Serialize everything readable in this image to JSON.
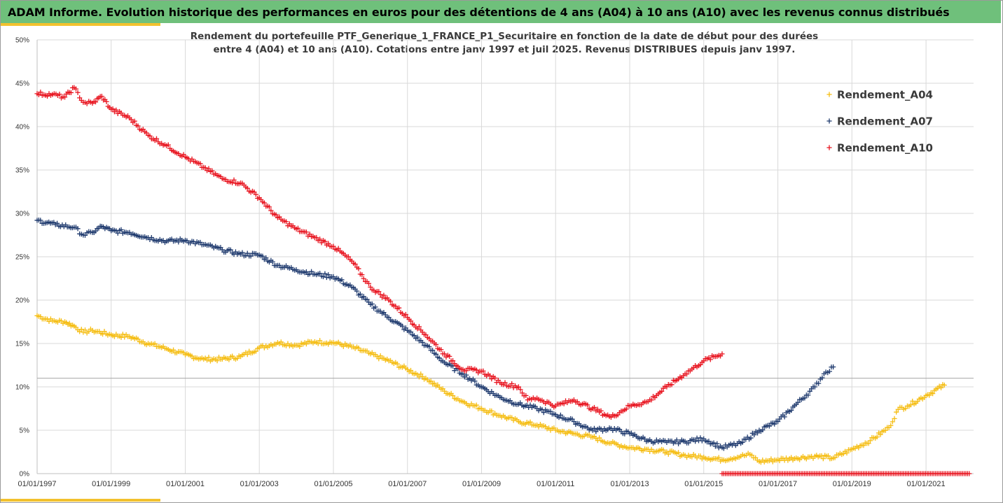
{
  "header": {
    "title": "ADAM Informe. Evolution historique des performances en euros pour des détentions de 4 ans (A04) à 10 ans (A10) avec les revenus connus distribués"
  },
  "colors": {
    "header_bg": "#6fc07b",
    "accent": "#f2c12e",
    "A04": "#f5bd12",
    "A07": "#1f3a6e",
    "A10": "#e8131e",
    "grid": "#d9d9d9",
    "hline": "#a6a6a6"
  },
  "chart_data": {
    "type": "scatter",
    "title_line1": "Rendement du portefeuille PTF_Generique_1_FRANCE_P1_Securitaire  en fonction de la date de début pour des durées",
    "title_line2": "entre 4 (A04) et 10 ans (A10). Cotations entre janv 1997 et juil 2025. Revenus DISTRIBUES depuis janv 1997.",
    "xlabel": "",
    "ylabel": "",
    "x_type": "date",
    "xlim": [
      "1997-01-01",
      "2022-04-15"
    ],
    "ylim": [
      0,
      50
    ],
    "y_unit": "%",
    "y_ticks": [
      "0%",
      "5%",
      "10%",
      "15%",
      "20%",
      "25%",
      "30%",
      "35%",
      "40%",
      "45%",
      "50%"
    ],
    "x_ticks": [
      "01/01/1997",
      "01/01/1999",
      "01/01/2001",
      "01/01/2003",
      "01/01/2005",
      "01/01/2007",
      "01/01/2009",
      "01/01/2011",
      "01/01/2013",
      "01/01/2015",
      "01/01/2017",
      "01/01/2019",
      "01/01/2021"
    ],
    "grid": true,
    "reference_line_y": 11,
    "legend_position": "top-right",
    "marker": "+",
    "series": [
      {
        "name": "Rendement_A04",
        "color": "#f5bd12",
        "points": [
          [
            "1997-01-01",
            18.2
          ],
          [
            "1997-06-01",
            17.6
          ],
          [
            "1997-10-01",
            17.5
          ],
          [
            "1998-01-01",
            17.0
          ],
          [
            "1998-04-01",
            16.3
          ],
          [
            "1998-07-01",
            16.5
          ],
          [
            "1999-01-01",
            16.0
          ],
          [
            "1999-07-01",
            15.8
          ],
          [
            "2000-01-01",
            15.0
          ],
          [
            "2000-07-01",
            14.4
          ],
          [
            "2001-01-01",
            13.7
          ],
          [
            "2001-07-01",
            13.2
          ],
          [
            "2002-01-01",
            13.2
          ],
          [
            "2002-07-01",
            13.5
          ],
          [
            "2003-01-01",
            14.5
          ],
          [
            "2003-07-01",
            15.1
          ],
          [
            "2004-01-01",
            14.8
          ],
          [
            "2004-07-01",
            15.2
          ],
          [
            "2005-01-01",
            15.1
          ],
          [
            "2005-07-01",
            14.6
          ],
          [
            "2006-01-01",
            13.8
          ],
          [
            "2006-07-01",
            13.0
          ],
          [
            "2007-01-01",
            12.0
          ],
          [
            "2007-07-01",
            11.0
          ],
          [
            "2008-01-01",
            9.5
          ],
          [
            "2008-07-01",
            8.3
          ],
          [
            "2009-01-01",
            7.5
          ],
          [
            "2009-07-01",
            6.7
          ],
          [
            "2010-01-01",
            6.0
          ],
          [
            "2010-07-01",
            5.6
          ],
          [
            "2011-01-01",
            5.0
          ],
          [
            "2011-07-01",
            4.6
          ],
          [
            "2012-01-01",
            4.2
          ],
          [
            "2012-07-01",
            3.5
          ],
          [
            "2013-01-01",
            3.0
          ],
          [
            "2013-07-01",
            2.8
          ],
          [
            "2014-01-01",
            2.5
          ],
          [
            "2014-07-01",
            2.1
          ],
          [
            "2015-01-01",
            1.9
          ],
          [
            "2015-07-01",
            1.6
          ],
          [
            "2016-01-01",
            2.0
          ],
          [
            "2016-04-01",
            2.2
          ],
          [
            "2016-07-01",
            1.4
          ],
          [
            "2017-01-01",
            1.6
          ],
          [
            "2017-07-01",
            1.8
          ],
          [
            "2018-01-01",
            2.0
          ],
          [
            "2018-07-01",
            1.8
          ],
          [
            "2019-01-01",
            2.8
          ],
          [
            "2019-07-01",
            3.8
          ],
          [
            "2020-01-01",
            5.3
          ],
          [
            "2020-04-01",
            7.4
          ],
          [
            "2020-07-01",
            7.8
          ],
          [
            "2021-01-01",
            9.0
          ],
          [
            "2021-07-01",
            10.2
          ]
        ]
      },
      {
        "name": "Rendement_A07",
        "color": "#1f3a6e",
        "points": [
          [
            "1997-01-01",
            29.2
          ],
          [
            "1997-07-01",
            28.7
          ],
          [
            "1998-01-01",
            28.4
          ],
          [
            "1998-04-01",
            27.5
          ],
          [
            "1998-07-01",
            27.8
          ],
          [
            "1998-10-01",
            28.5
          ],
          [
            "1999-01-01",
            28.0
          ],
          [
            "1999-07-01",
            27.8
          ],
          [
            "2000-01-01",
            27.2
          ],
          [
            "2000-07-01",
            26.8
          ],
          [
            "2001-01-01",
            26.9
          ],
          [
            "2001-07-01",
            26.4
          ],
          [
            "2002-01-01",
            25.8
          ],
          [
            "2002-07-01",
            25.3
          ],
          [
            "2003-01-01",
            25.2
          ],
          [
            "2003-07-01",
            24.0
          ],
          [
            "2004-01-01",
            23.5
          ],
          [
            "2004-07-01",
            23.0
          ],
          [
            "2005-01-01",
            22.7
          ],
          [
            "2005-07-01",
            21.5
          ],
          [
            "2006-01-01",
            19.5
          ],
          [
            "2006-07-01",
            18.0
          ],
          [
            "2007-01-01",
            16.5
          ],
          [
            "2007-07-01",
            14.8
          ],
          [
            "2008-01-01",
            12.8
          ],
          [
            "2008-07-01",
            11.5
          ],
          [
            "2009-01-01",
            10.0
          ],
          [
            "2009-07-01",
            8.8
          ],
          [
            "2010-01-01",
            8.0
          ],
          [
            "2010-07-01",
            7.5
          ],
          [
            "2011-01-01",
            6.8
          ],
          [
            "2011-07-01",
            6.0
          ],
          [
            "2012-01-01",
            5.0
          ],
          [
            "2012-07-01",
            5.2
          ],
          [
            "2013-01-01",
            4.6
          ],
          [
            "2013-07-01",
            3.8
          ],
          [
            "2014-01-01",
            3.6
          ],
          [
            "2014-07-01",
            3.7
          ],
          [
            "2015-01-01",
            4.0
          ],
          [
            "2015-07-01",
            3.0
          ],
          [
            "2016-01-01",
            3.5
          ],
          [
            "2016-07-01",
            5.0
          ],
          [
            "2017-01-01",
            6.0
          ],
          [
            "2017-07-01",
            8.0
          ],
          [
            "2018-01-01",
            10.0
          ],
          [
            "2018-04-01",
            11.5
          ],
          [
            "2018-07-01",
            12.3
          ]
        ]
      },
      {
        "name": "Rendement_A10",
        "color": "#e8131e",
        "points": [
          [
            "1997-01-01",
            43.8
          ],
          [
            "1997-06-01",
            43.7
          ],
          [
            "1997-10-01",
            43.4
          ],
          [
            "1998-01-01",
            44.5
          ],
          [
            "1998-04-01",
            42.8
          ],
          [
            "1998-07-01",
            42.7
          ],
          [
            "1998-10-01",
            43.5
          ],
          [
            "1999-01-01",
            42.0
          ],
          [
            "1999-07-01",
            41.0
          ],
          [
            "2000-01-01",
            39.0
          ],
          [
            "2000-07-01",
            37.8
          ],
          [
            "2001-01-01",
            36.5
          ],
          [
            "2001-07-01",
            35.3
          ],
          [
            "2002-01-01",
            34.0
          ],
          [
            "2002-07-01",
            33.5
          ],
          [
            "2003-01-01",
            31.8
          ],
          [
            "2003-07-01",
            29.5
          ],
          [
            "2004-01-01",
            28.2
          ],
          [
            "2004-07-01",
            27.2
          ],
          [
            "2005-01-01",
            26.2
          ],
          [
            "2005-07-01",
            24.5
          ],
          [
            "2006-01-01",
            21.5
          ],
          [
            "2006-07-01",
            20.0
          ],
          [
            "2007-01-01",
            18.0
          ],
          [
            "2007-07-01",
            16.0
          ],
          [
            "2008-01-01",
            13.8
          ],
          [
            "2008-07-01",
            12.0
          ],
          [
            "2009-01-01",
            11.8
          ],
          [
            "2009-07-01",
            10.5
          ],
          [
            "2010-01-01",
            10.0
          ],
          [
            "2010-04-01",
            8.5
          ],
          [
            "2010-07-01",
            8.7
          ],
          [
            "2011-01-01",
            7.8
          ],
          [
            "2011-07-01",
            8.5
          ],
          [
            "2012-01-01",
            7.5
          ],
          [
            "2012-07-01",
            6.5
          ],
          [
            "2013-01-01",
            7.8
          ],
          [
            "2013-07-01",
            8.3
          ],
          [
            "2014-01-01",
            10.0
          ],
          [
            "2014-07-01",
            11.5
          ],
          [
            "2015-01-01",
            13.0
          ],
          [
            "2015-07-01",
            13.8
          ],
          [
            "2021-10-01",
            0.0
          ]
        ],
        "zero_segment": [
          "2015-07-01",
          "2022-03-15"
        ]
      }
    ]
  }
}
